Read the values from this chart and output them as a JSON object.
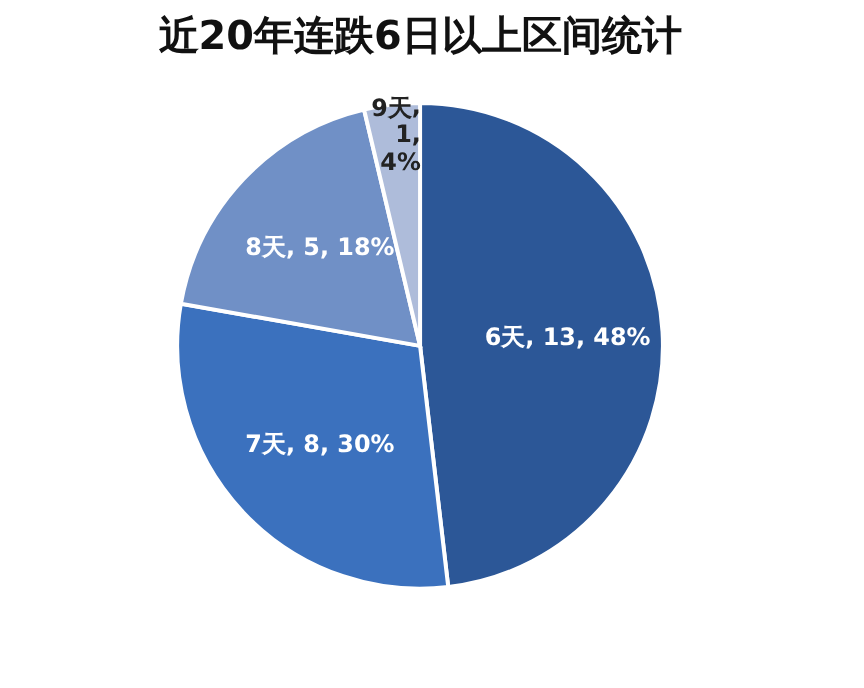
{
  "chart_data": {
    "type": "pie",
    "title": "近20年连跌6日以上区间统计",
    "categories": [
      "6天",
      "7天",
      "8天",
      "9天"
    ],
    "values": [
      13,
      8,
      5,
      1
    ],
    "value_labels": [
      ", 13, 48%",
      ", 8, 30%",
      ", 5, 18%",
      ", 1, 4%"
    ],
    "colors": [
      "#2c5797",
      "#3b71be",
      "#7090c6",
      "#aebcda"
    ],
    "legend": false
  }
}
